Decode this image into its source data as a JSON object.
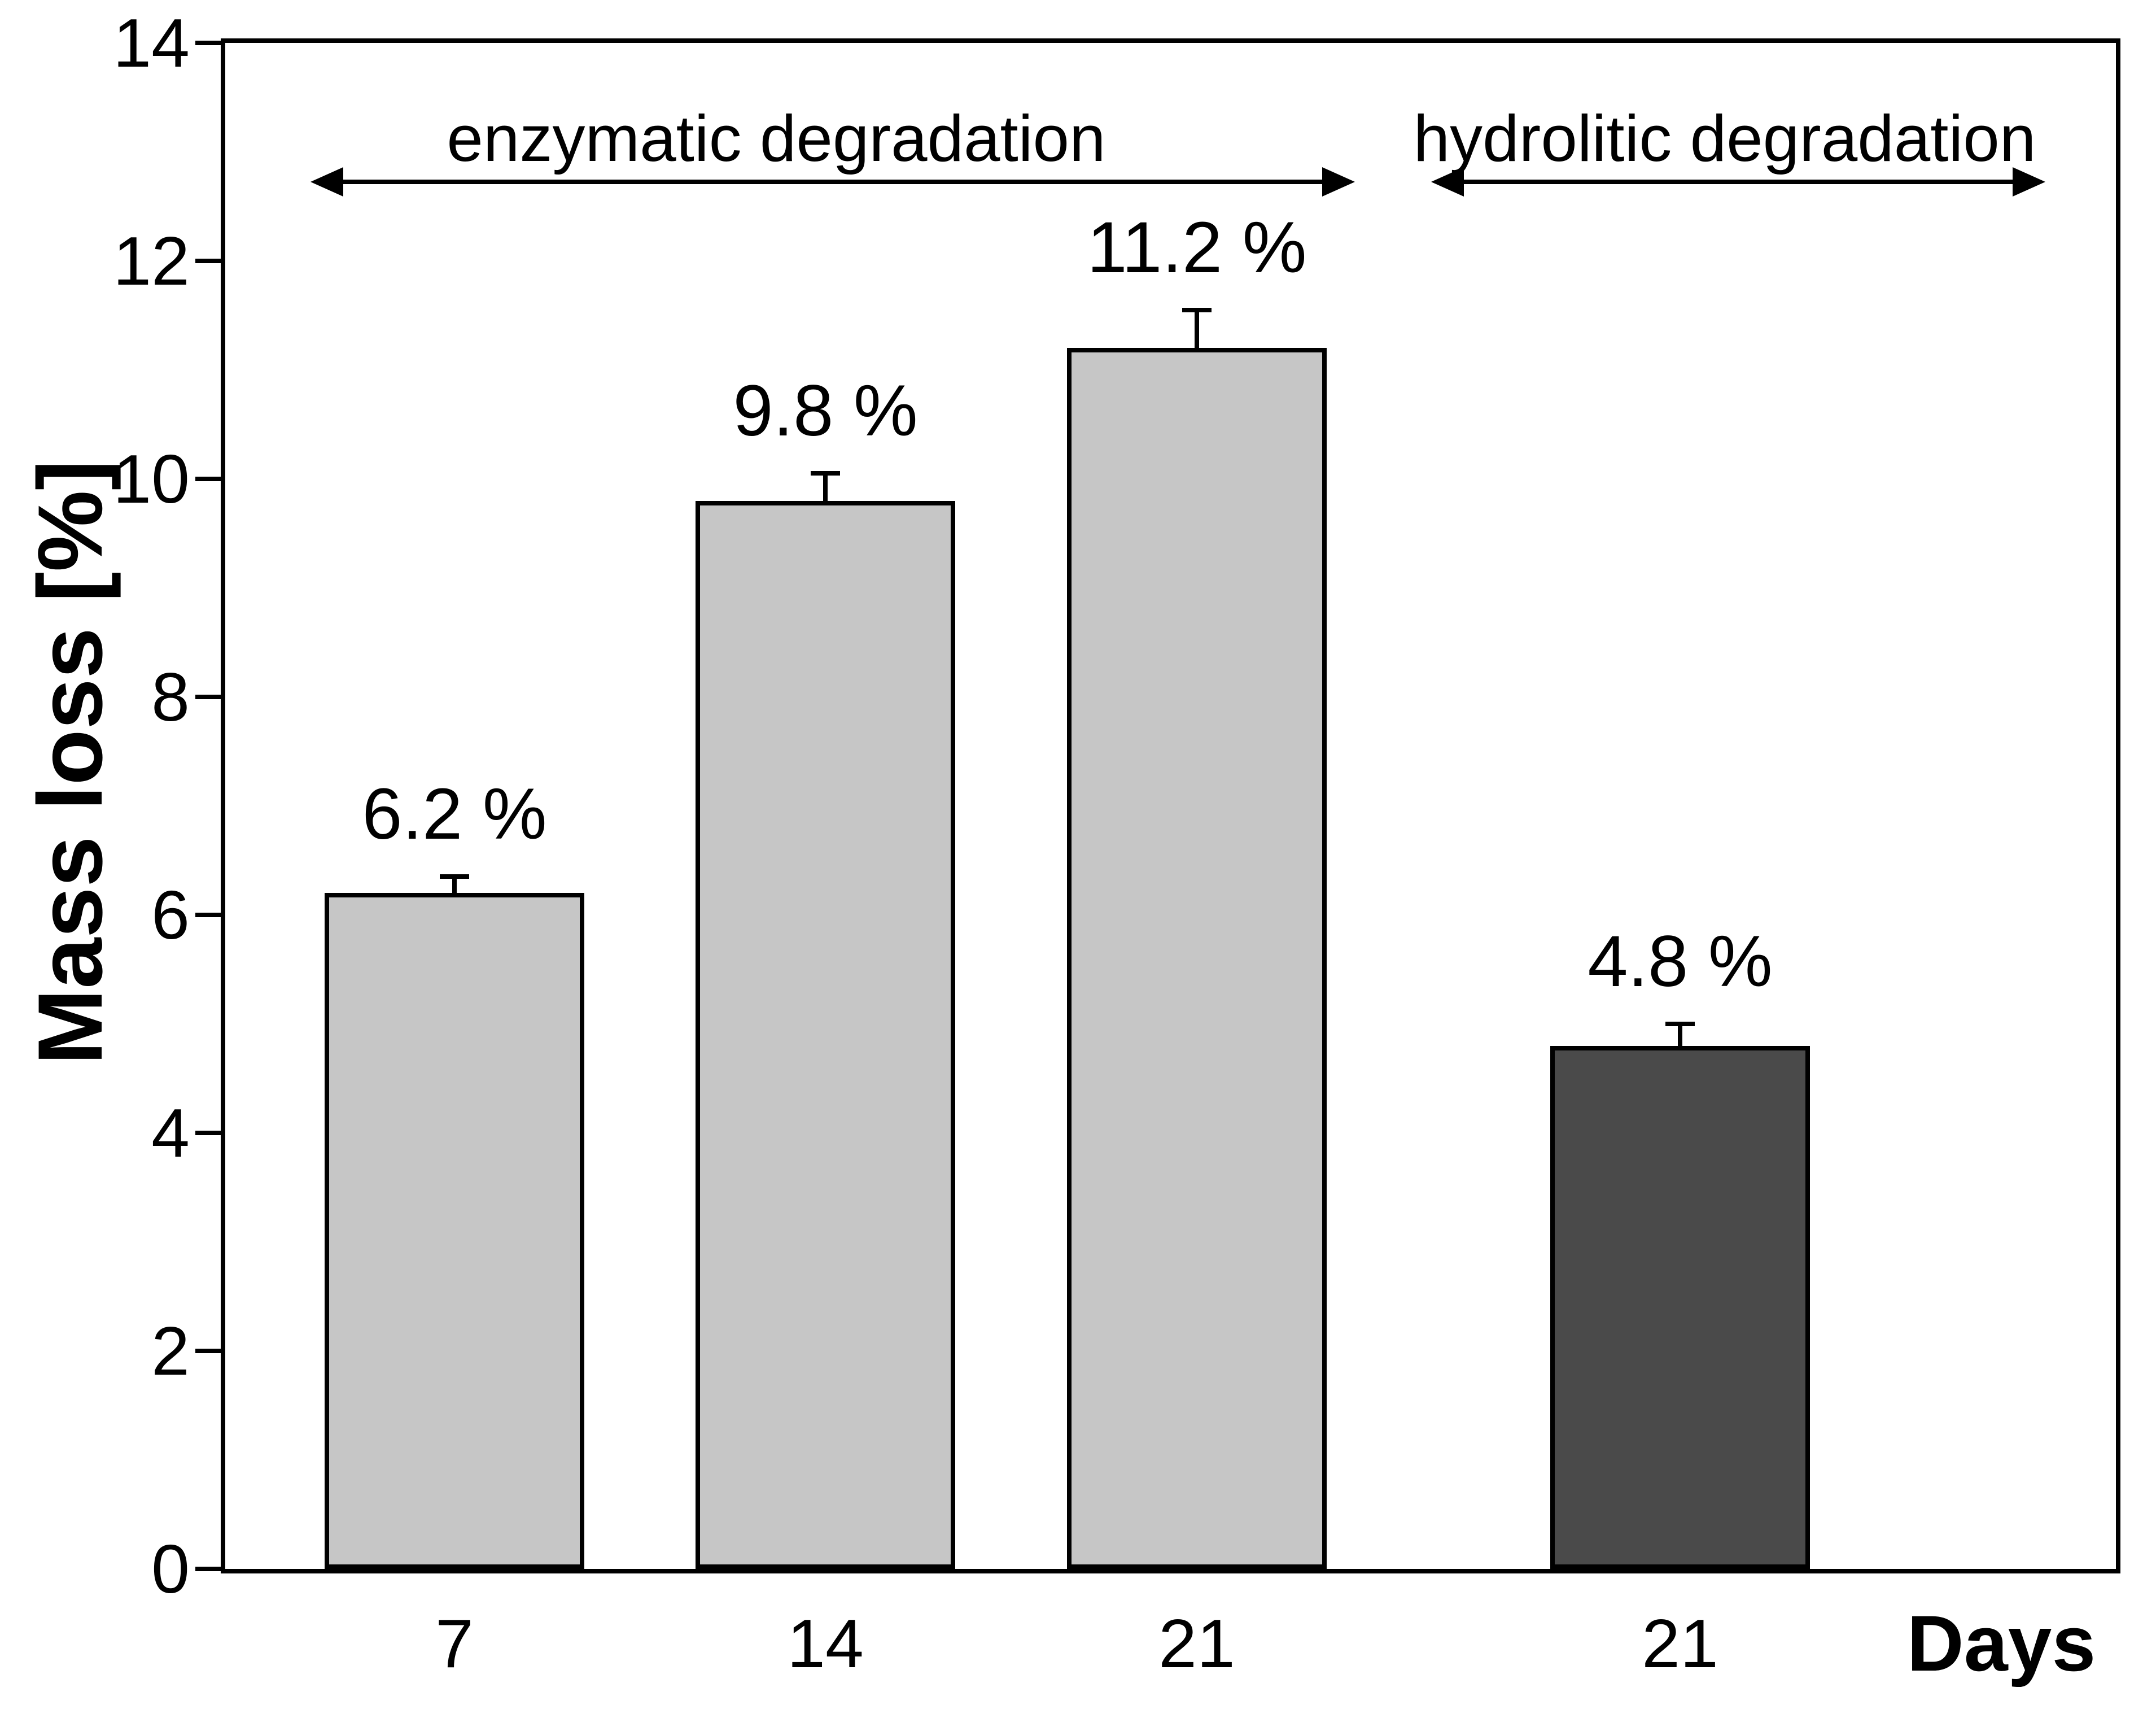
{
  "chart_data": {
    "type": "bar",
    "title": "",
    "ylabel": "Mass loss [%]",
    "xlabel": "Days",
    "ylim": [
      0,
      14
    ],
    "yticks": [
      "0",
      "2",
      "4",
      "6",
      "8",
      "10",
      "12",
      "14"
    ],
    "categories": [
      "7",
      "14",
      "21",
      "21"
    ],
    "values": [
      6.2,
      9.8,
      11.2,
      4.8
    ],
    "errors": [
      0.15,
      0.25,
      0.35,
      0.2
    ],
    "bar_value_labels": [
      "6.2 %",
      "9.8 %",
      "11.2 %",
      "4.8 %"
    ],
    "bar_colors": [
      "#c6c6c6",
      "#c6c6c6",
      "#c6c6c6",
      "#4a4a4a"
    ],
    "bar_border_color": "#000000",
    "axis_color": "#000000",
    "background_color": "#ffffff",
    "grid": false,
    "legend_position": "none",
    "annotations": [
      {
        "label": "enzymatic degradation",
        "covers_category_indexes": [
          0,
          1,
          2
        ]
      },
      {
        "label": "hydrolitic degradation",
        "covers_category_indexes": [
          3
        ]
      }
    ]
  }
}
